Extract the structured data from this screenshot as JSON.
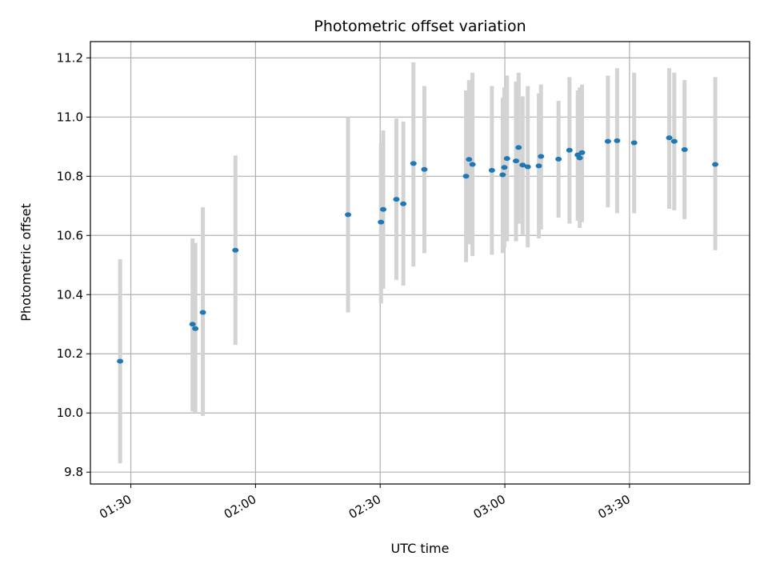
{
  "chart_data": {
    "type": "scatter",
    "title": "Photometric offset variation",
    "xlabel": "UTC time",
    "ylabel": "Photometric offset",
    "x_tick_labels": [
      "01:30",
      "02:00",
      "02:30",
      "03:00",
      "03:30"
    ],
    "x_ticks": [
      "01:30",
      "02:00",
      "02:30",
      "03:00",
      "03:30"
    ],
    "y_ticks": [
      9.8,
      10.0,
      10.2,
      10.4,
      10.6,
      10.8,
      11.0,
      11.2
    ],
    "y_tick_labels": [
      "9.8",
      "10.0",
      "10.2",
      "10.4",
      "10.6",
      "10.8",
      "11.0",
      "11.2"
    ],
    "xlim": [
      "01:20:16",
      "03:58:54"
    ],
    "ylim": [
      9.76,
      11.255
    ],
    "grid": true,
    "point_color": "#1f77b4",
    "errorbar_color": "#d3d3d3",
    "series": [
      {
        "points": [
          {
            "t": "01:27:25",
            "y": 10.175,
            "lo": 9.83,
            "hi": 10.52
          },
          {
            "t": "01:44:51",
            "y": 10.3,
            "lo": 10.005,
            "hi": 10.59
          },
          {
            "t": "01:45:31",
            "y": 10.285,
            "lo": 10.0,
            "hi": 10.575
          },
          {
            "t": "01:47:20",
            "y": 10.34,
            "lo": 9.99,
            "hi": 10.695
          },
          {
            "t": "01:55:10",
            "y": 10.55,
            "lo": 10.23,
            "hi": 10.87
          },
          {
            "t": "02:22:16",
            "y": 10.67,
            "lo": 10.34,
            "hi": 11.0
          },
          {
            "t": "02:30:12",
            "y": 10.645,
            "lo": 10.37,
            "hi": 10.915
          },
          {
            "t": "02:30:44",
            "y": 10.688,
            "lo": 10.42,
            "hi": 10.955
          },
          {
            "t": "02:33:54",
            "y": 10.722,
            "lo": 10.45,
            "hi": 10.995
          },
          {
            "t": "02:35:34",
            "y": 10.707,
            "lo": 10.43,
            "hi": 10.985
          },
          {
            "t": "02:38:00",
            "y": 10.843,
            "lo": 10.495,
            "hi": 11.185
          },
          {
            "t": "02:40:38",
            "y": 10.823,
            "lo": 10.54,
            "hi": 11.105
          },
          {
            "t": "02:50:40",
            "y": 10.8,
            "lo": 10.51,
            "hi": 11.09
          },
          {
            "t": "02:51:23",
            "y": 10.857,
            "lo": 10.57,
            "hi": 11.125
          },
          {
            "t": "02:52:13",
            "y": 10.84,
            "lo": 10.53,
            "hi": 11.15
          },
          {
            "t": "02:56:53",
            "y": 10.82,
            "lo": 10.535,
            "hi": 11.105
          },
          {
            "t": "02:59:29",
            "y": 10.805,
            "lo": 10.54,
            "hi": 11.065
          },
          {
            "t": "02:59:53",
            "y": 10.83,
            "lo": 10.56,
            "hi": 11.1
          },
          {
            "t": "03:00:31",
            "y": 10.86,
            "lo": 10.58,
            "hi": 11.14
          },
          {
            "t": "03:02:41",
            "y": 10.852,
            "lo": 10.58,
            "hi": 11.12
          },
          {
            "t": "03:03:19",
            "y": 10.897,
            "lo": 10.64,
            "hi": 11.15
          },
          {
            "t": "03:04:17",
            "y": 10.838,
            "lo": 10.6,
            "hi": 11.07
          },
          {
            "t": "03:05:31",
            "y": 10.832,
            "lo": 10.56,
            "hi": 11.105
          },
          {
            "t": "03:08:11",
            "y": 10.835,
            "lo": 10.59,
            "hi": 11.08
          },
          {
            "t": "03:08:42",
            "y": 10.867,
            "lo": 10.62,
            "hi": 11.11
          },
          {
            "t": "03:12:55",
            "y": 10.858,
            "lo": 10.66,
            "hi": 11.055
          },
          {
            "t": "03:15:33",
            "y": 10.888,
            "lo": 10.64,
            "hi": 11.135
          },
          {
            "t": "03:17:33",
            "y": 10.872,
            "lo": 10.65,
            "hi": 11.09
          },
          {
            "t": "03:18:01",
            "y": 10.862,
            "lo": 10.625,
            "hi": 11.1
          },
          {
            "t": "03:18:34",
            "y": 10.88,
            "lo": 10.645,
            "hi": 11.11
          },
          {
            "t": "03:24:48",
            "y": 10.918,
            "lo": 10.695,
            "hi": 11.14
          },
          {
            "t": "03:27:01",
            "y": 10.92,
            "lo": 10.675,
            "hi": 11.165
          },
          {
            "t": "03:31:07",
            "y": 10.913,
            "lo": 10.675,
            "hi": 11.15
          },
          {
            "t": "03:39:34",
            "y": 10.93,
            "lo": 10.69,
            "hi": 11.165
          },
          {
            "t": "03:40:46",
            "y": 10.918,
            "lo": 10.685,
            "hi": 11.15
          },
          {
            "t": "03:43:15",
            "y": 10.89,
            "lo": 10.655,
            "hi": 11.125
          },
          {
            "t": "03:50:38",
            "y": 10.84,
            "lo": 10.55,
            "hi": 11.135
          }
        ]
      }
    ]
  }
}
